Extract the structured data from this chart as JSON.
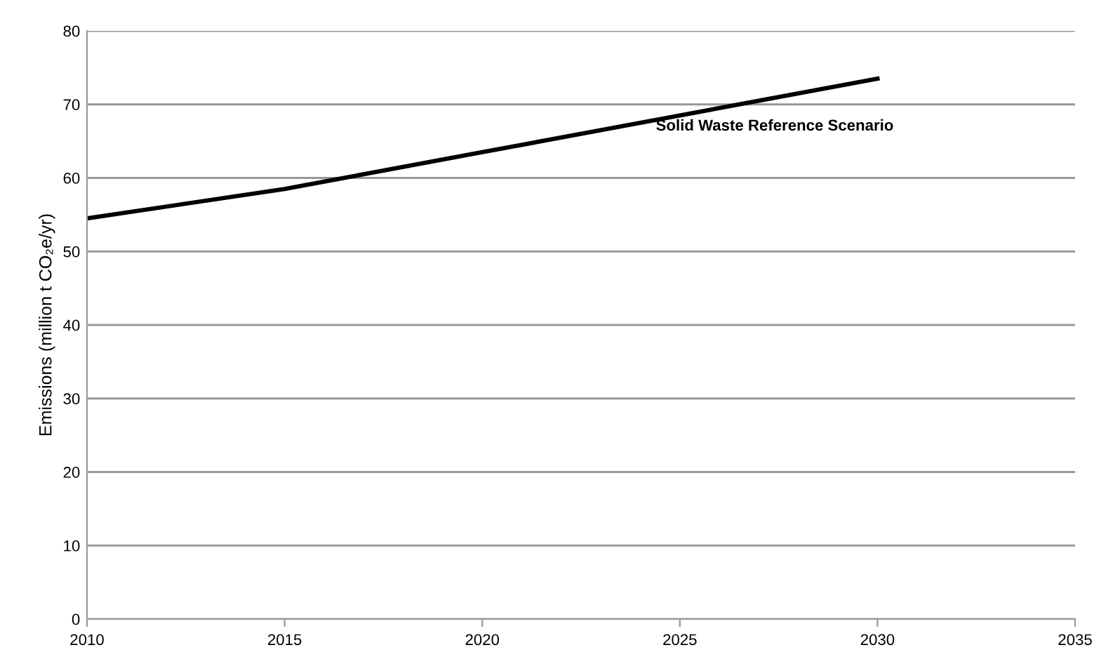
{
  "chart_data": {
    "type": "line",
    "ylabel": "Emissions (million t CO₂e/yr)",
    "x": [
      2010,
      2015,
      2020,
      2025,
      2030
    ],
    "series": [
      {
        "name": "Solid Waste Reference Scenario",
        "color": "#000000",
        "values": [
          54.5,
          58.5,
          63.5,
          68.5,
          73.5
        ]
      }
    ],
    "xlim": [
      2010,
      2035
    ],
    "xticks": [
      2010,
      2015,
      2020,
      2025,
      2030,
      2035
    ],
    "ylim": [
      0,
      80
    ],
    "yticks": [
      0,
      10,
      20,
      30,
      40,
      50,
      60,
      70,
      80
    ],
    "grid": "y",
    "legend": false,
    "marker": "none",
    "line_style": "solid"
  }
}
